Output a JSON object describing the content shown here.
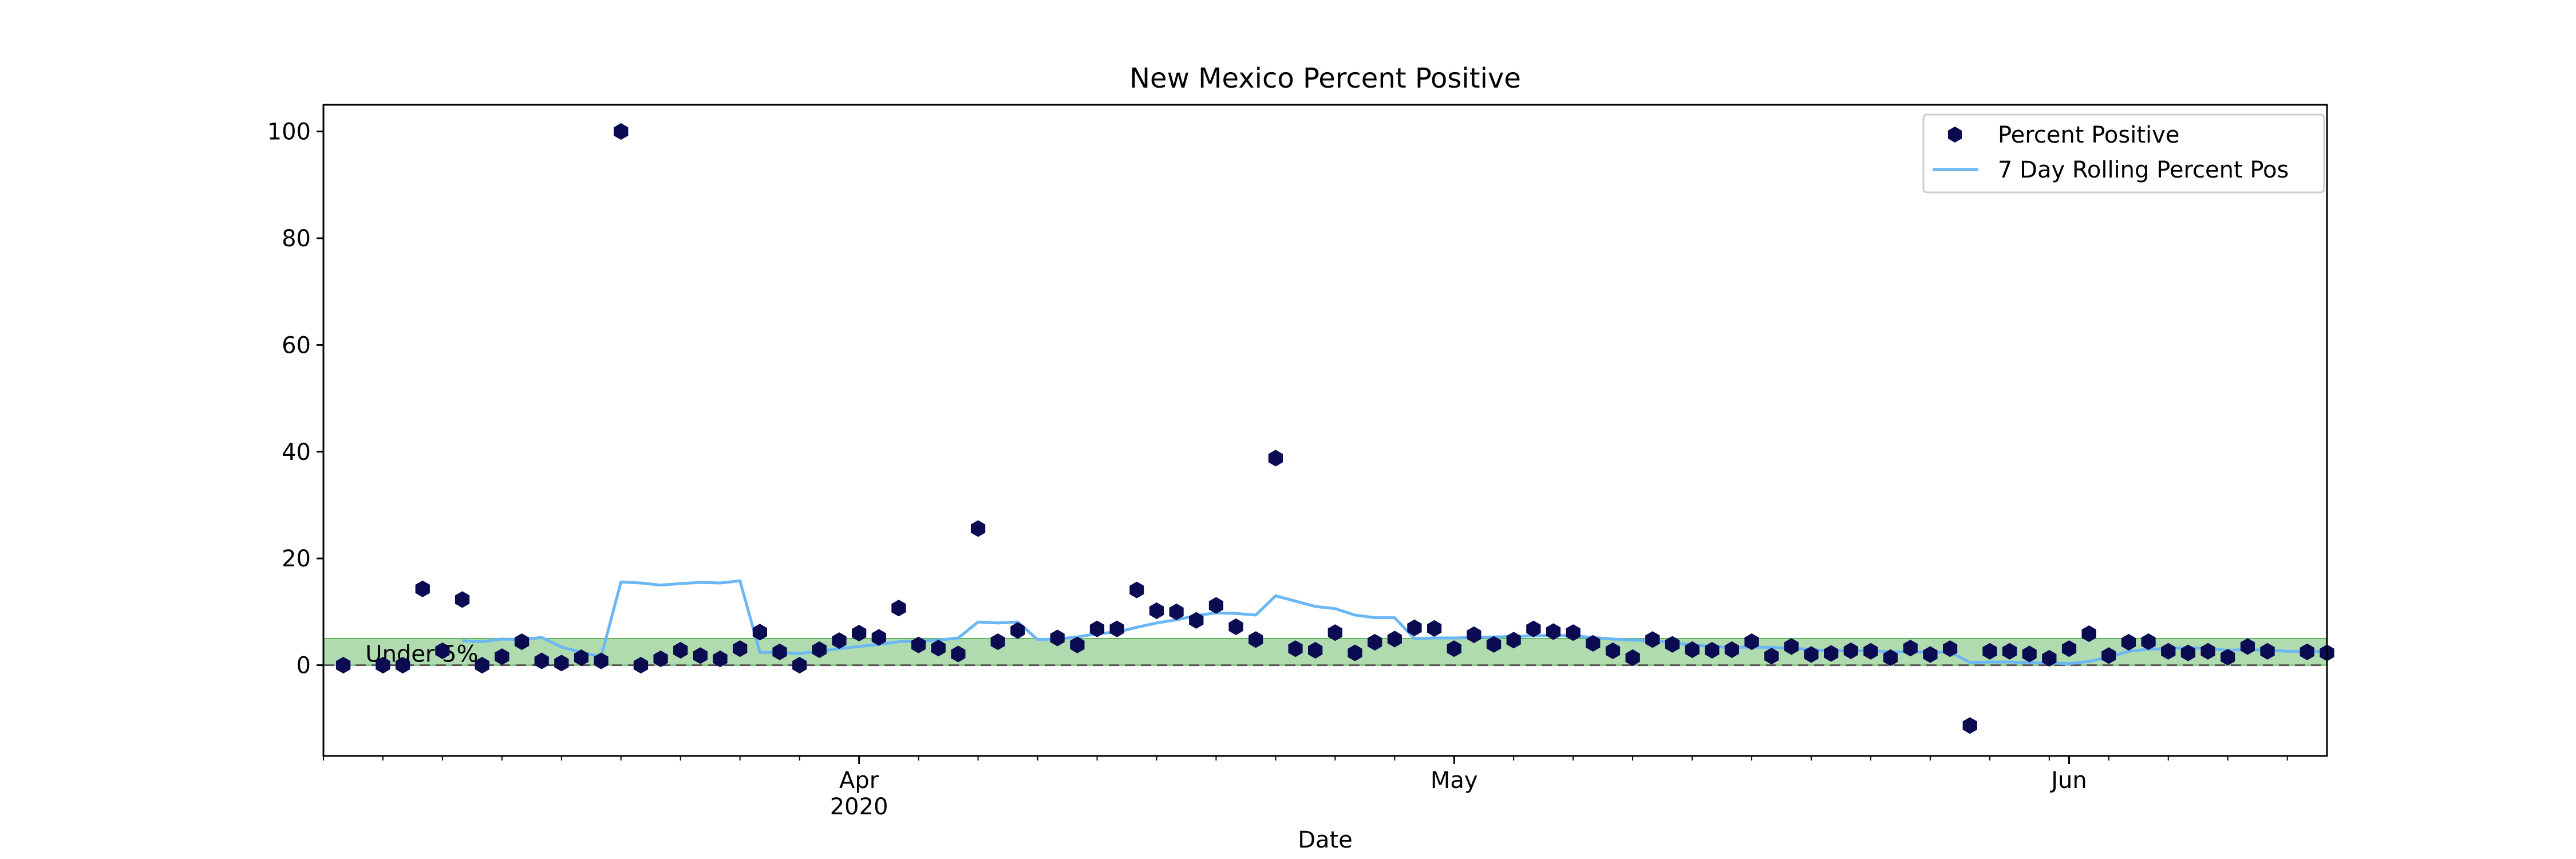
{
  "chart_data": {
    "type": "scatter",
    "title": "New Mexico Percent Positive",
    "xlabel": "Date",
    "ylabel": "",
    "xlim": [
      "2020-03-05",
      "2020-06-14"
    ],
    "ylim": [
      -17,
      105
    ],
    "yticks": [
      0,
      20,
      40,
      60,
      80,
      100
    ],
    "xticks": [
      {
        "date": "2020-04-01",
        "label": "Apr",
        "sublabel": "2020"
      },
      {
        "date": "2020-05-01",
        "label": "May",
        "sublabel": ""
      },
      {
        "date": "2020-06-01",
        "label": "Jun",
        "sublabel": ""
      }
    ],
    "legend_position": "top-right",
    "grid": false,
    "band": {
      "y0": 0,
      "y1": 5,
      "label": "Under 5%",
      "color": "#2ca02c"
    },
    "zero_line_color": "#555555",
    "series": [
      {
        "name": "Percent Positive",
        "kind": "scatter",
        "color": "#0b0b52",
        "points": [
          [
            "2020-03-06",
            0
          ],
          [
            "2020-03-08",
            0
          ],
          [
            "2020-03-09",
            0
          ],
          [
            "2020-03-10",
            14.3
          ],
          [
            "2020-03-11",
            2.7
          ],
          [
            "2020-03-12",
            12.3
          ],
          [
            "2020-03-13",
            0
          ],
          [
            "2020-03-14",
            1.6
          ],
          [
            "2020-03-15",
            4.4
          ],
          [
            "2020-03-16",
            0.8
          ],
          [
            "2020-03-17",
            0.4
          ],
          [
            "2020-03-18",
            1.4
          ],
          [
            "2020-03-19",
            0.8
          ],
          [
            "2020-03-20",
            100
          ],
          [
            "2020-03-21",
            0
          ],
          [
            "2020-03-22",
            1.2
          ],
          [
            "2020-03-23",
            2.8
          ],
          [
            "2020-03-24",
            1.8
          ],
          [
            "2020-03-25",
            1.2
          ],
          [
            "2020-03-26",
            3.1
          ],
          [
            "2020-03-27",
            6.2
          ],
          [
            "2020-03-28",
            2.5
          ],
          [
            "2020-03-29",
            0
          ],
          [
            "2020-03-30",
            2.9
          ],
          [
            "2020-03-31",
            4.6
          ],
          [
            "2020-04-01",
            6
          ],
          [
            "2020-04-02",
            5.2
          ],
          [
            "2020-04-03",
            10.7
          ],
          [
            "2020-04-04",
            3.8
          ],
          [
            "2020-04-05",
            3.2
          ],
          [
            "2020-04-06",
            2.1
          ],
          [
            "2020-04-07",
            25.6
          ],
          [
            "2020-04-08",
            4.4
          ],
          [
            "2020-04-09",
            6.5
          ],
          [
            "2020-04-11",
            5.1
          ],
          [
            "2020-04-12",
            3.8
          ],
          [
            "2020-04-13",
            6.8
          ],
          [
            "2020-04-14",
            6.8
          ],
          [
            "2020-04-15",
            14.1
          ],
          [
            "2020-04-16",
            10.2
          ],
          [
            "2020-04-17",
            10
          ],
          [
            "2020-04-18",
            8.4
          ],
          [
            "2020-04-19",
            11.2
          ],
          [
            "2020-04-20",
            7.2
          ],
          [
            "2020-04-21",
            4.8
          ],
          [
            "2020-04-22",
            38.8
          ],
          [
            "2020-04-23",
            3.1
          ],
          [
            "2020-04-24",
            2.8
          ],
          [
            "2020-04-25",
            6.1
          ],
          [
            "2020-04-26",
            2.3
          ],
          [
            "2020-04-27",
            4.3
          ],
          [
            "2020-04-28",
            4.9
          ],
          [
            "2020-04-29",
            7
          ],
          [
            "2020-04-30",
            6.9
          ],
          [
            "2020-05-01",
            3.1
          ],
          [
            "2020-05-02",
            5.7
          ],
          [
            "2020-05-03",
            3.9
          ],
          [
            "2020-05-04",
            4.7
          ],
          [
            "2020-05-05",
            6.8
          ],
          [
            "2020-05-06",
            6.3
          ],
          [
            "2020-05-07",
            6.1
          ],
          [
            "2020-05-08",
            4.1
          ],
          [
            "2020-05-09",
            2.7
          ],
          [
            "2020-05-10",
            1.4
          ],
          [
            "2020-05-11",
            4.8
          ],
          [
            "2020-05-12",
            3.9
          ],
          [
            "2020-05-13",
            2.9
          ],
          [
            "2020-05-14",
            2.8
          ],
          [
            "2020-05-15",
            2.9
          ],
          [
            "2020-05-16",
            4.4
          ],
          [
            "2020-05-17",
            1.7
          ],
          [
            "2020-05-18",
            3.5
          ],
          [
            "2020-05-19",
            2
          ],
          [
            "2020-05-20",
            2.2
          ],
          [
            "2020-05-21",
            2.7
          ],
          [
            "2020-05-22",
            2.6
          ],
          [
            "2020-05-23",
            1.4
          ],
          [
            "2020-05-24",
            3.2
          ],
          [
            "2020-05-25",
            2
          ],
          [
            "2020-05-26",
            3.1
          ],
          [
            "2020-05-27",
            -11.3
          ],
          [
            "2020-05-28",
            2.6
          ],
          [
            "2020-05-29",
            2.6
          ],
          [
            "2020-05-30",
            2.1
          ],
          [
            "2020-05-31",
            1.3
          ],
          [
            "2020-06-01",
            3.1
          ],
          [
            "2020-06-02",
            5.9
          ],
          [
            "2020-06-03",
            1.8
          ],
          [
            "2020-06-04",
            4.3
          ],
          [
            "2020-06-05",
            4.4
          ],
          [
            "2020-06-06",
            2.6
          ],
          [
            "2020-06-07",
            2.3
          ],
          [
            "2020-06-08",
            2.6
          ],
          [
            "2020-06-09",
            1.5
          ],
          [
            "2020-06-10",
            3.5
          ],
          [
            "2020-06-11",
            2.6
          ],
          [
            "2020-06-13",
            2.5
          ],
          [
            "2020-06-14",
            2.3
          ]
        ]
      },
      {
        "name": "7 Day Rolling Percent Pos",
        "kind": "line",
        "color": "#6bb6f5",
        "points": [
          [
            "2020-03-12",
            4.6
          ],
          [
            "2020-03-13",
            4.4
          ],
          [
            "2020-03-14",
            4.9
          ],
          [
            "2020-03-15",
            4.8
          ],
          [
            "2020-03-16",
            5.2
          ],
          [
            "2020-03-17",
            3.4
          ],
          [
            "2020-03-18",
            2.4
          ],
          [
            "2020-03-19",
            1.6
          ],
          [
            "2020-03-20",
            15.6
          ],
          [
            "2020-03-21",
            15.4
          ],
          [
            "2020-03-22",
            15.0
          ],
          [
            "2020-03-23",
            15.3
          ],
          [
            "2020-03-24",
            15.5
          ],
          [
            "2020-03-25",
            15.4
          ],
          [
            "2020-03-26",
            15.8
          ],
          [
            "2020-03-27",
            2.4
          ],
          [
            "2020-03-28",
            2.4
          ],
          [
            "2020-03-29",
            2.2
          ],
          [
            "2020-03-30",
            2.6
          ],
          [
            "2020-03-31",
            3.1
          ],
          [
            "2020-04-01",
            3.5
          ],
          [
            "2020-04-02",
            3.9
          ],
          [
            "2020-04-03",
            4.4
          ],
          [
            "2020-04-04",
            4.5
          ],
          [
            "2020-04-05",
            4.7
          ],
          [
            "2020-04-06",
            5.1
          ],
          [
            "2020-04-07",
            8.1
          ],
          [
            "2020-04-08",
            7.9
          ],
          [
            "2020-04-09",
            8.1
          ],
          [
            "2020-04-10",
            4.8
          ],
          [
            "2020-04-11",
            4.9
          ],
          [
            "2020-04-12",
            5.3
          ],
          [
            "2020-04-13",
            5.9
          ],
          [
            "2020-04-14",
            6.2
          ],
          [
            "2020-04-15",
            7.1
          ],
          [
            "2020-04-16",
            7.9
          ],
          [
            "2020-04-17",
            8.5
          ],
          [
            "2020-04-18",
            9.3
          ],
          [
            "2020-04-19",
            9.8
          ],
          [
            "2020-04-20",
            9.7
          ],
          [
            "2020-04-21",
            9.4
          ],
          [
            "2020-04-22",
            13.0
          ],
          [
            "2020-04-23",
            12.0
          ],
          [
            "2020-04-24",
            11.0
          ],
          [
            "2020-04-25",
            10.6
          ],
          [
            "2020-04-26",
            9.4
          ],
          [
            "2020-04-27",
            8.9
          ],
          [
            "2020-04-28",
            8.9
          ],
          [
            "2020-04-29",
            5.0
          ],
          [
            "2020-04-30",
            5.1
          ],
          [
            "2020-05-01",
            5.1
          ],
          [
            "2020-05-02",
            5.2
          ],
          [
            "2020-05-03",
            5.3
          ],
          [
            "2020-05-04",
            5.4
          ],
          [
            "2020-05-05",
            5.5
          ],
          [
            "2020-05-06",
            5.6
          ],
          [
            "2020-05-07",
            5.5
          ],
          [
            "2020-05-08",
            5.2
          ],
          [
            "2020-05-09",
            4.9
          ],
          [
            "2020-05-10",
            4.7
          ],
          [
            "2020-05-11",
            4.6
          ],
          [
            "2020-05-12",
            4.2
          ],
          [
            "2020-05-13",
            3.8
          ],
          [
            "2020-05-14",
            3.5
          ],
          [
            "2020-05-15",
            3.3
          ],
          [
            "2020-05-16",
            3.4
          ],
          [
            "2020-05-17",
            3.3
          ],
          [
            "2020-05-18",
            3.2
          ],
          [
            "2020-05-19",
            2.9
          ],
          [
            "2020-05-20",
            2.7
          ],
          [
            "2020-05-21",
            2.7
          ],
          [
            "2020-05-22",
            2.7
          ],
          [
            "2020-05-23",
            2.5
          ],
          [
            "2020-05-24",
            2.5
          ],
          [
            "2020-05-25",
            2.4
          ],
          [
            "2020-05-26",
            2.5
          ],
          [
            "2020-05-27",
            0.5
          ],
          [
            "2020-05-28",
            0.6
          ],
          [
            "2020-05-29",
            0.6
          ],
          [
            "2020-05-30",
            0.5
          ],
          [
            "2020-05-31",
            0.4
          ],
          [
            "2020-06-01",
            0.3
          ],
          [
            "2020-06-02",
            0.7
          ],
          [
            "2020-06-03",
            1.5
          ],
          [
            "2020-06-04",
            2.6
          ],
          [
            "2020-06-05",
            3.0
          ],
          [
            "2020-06-06",
            3.1
          ],
          [
            "2020-06-07",
            3.3
          ],
          [
            "2020-06-08",
            3.1
          ],
          [
            "2020-06-09",
            2.8
          ],
          [
            "2020-06-10",
            2.9
          ],
          [
            "2020-06-11",
            2.8
          ],
          [
            "2020-06-12",
            2.6
          ],
          [
            "2020-06-13",
            2.6
          ],
          [
            "2020-06-14",
            2.5
          ]
        ]
      }
    ]
  }
}
